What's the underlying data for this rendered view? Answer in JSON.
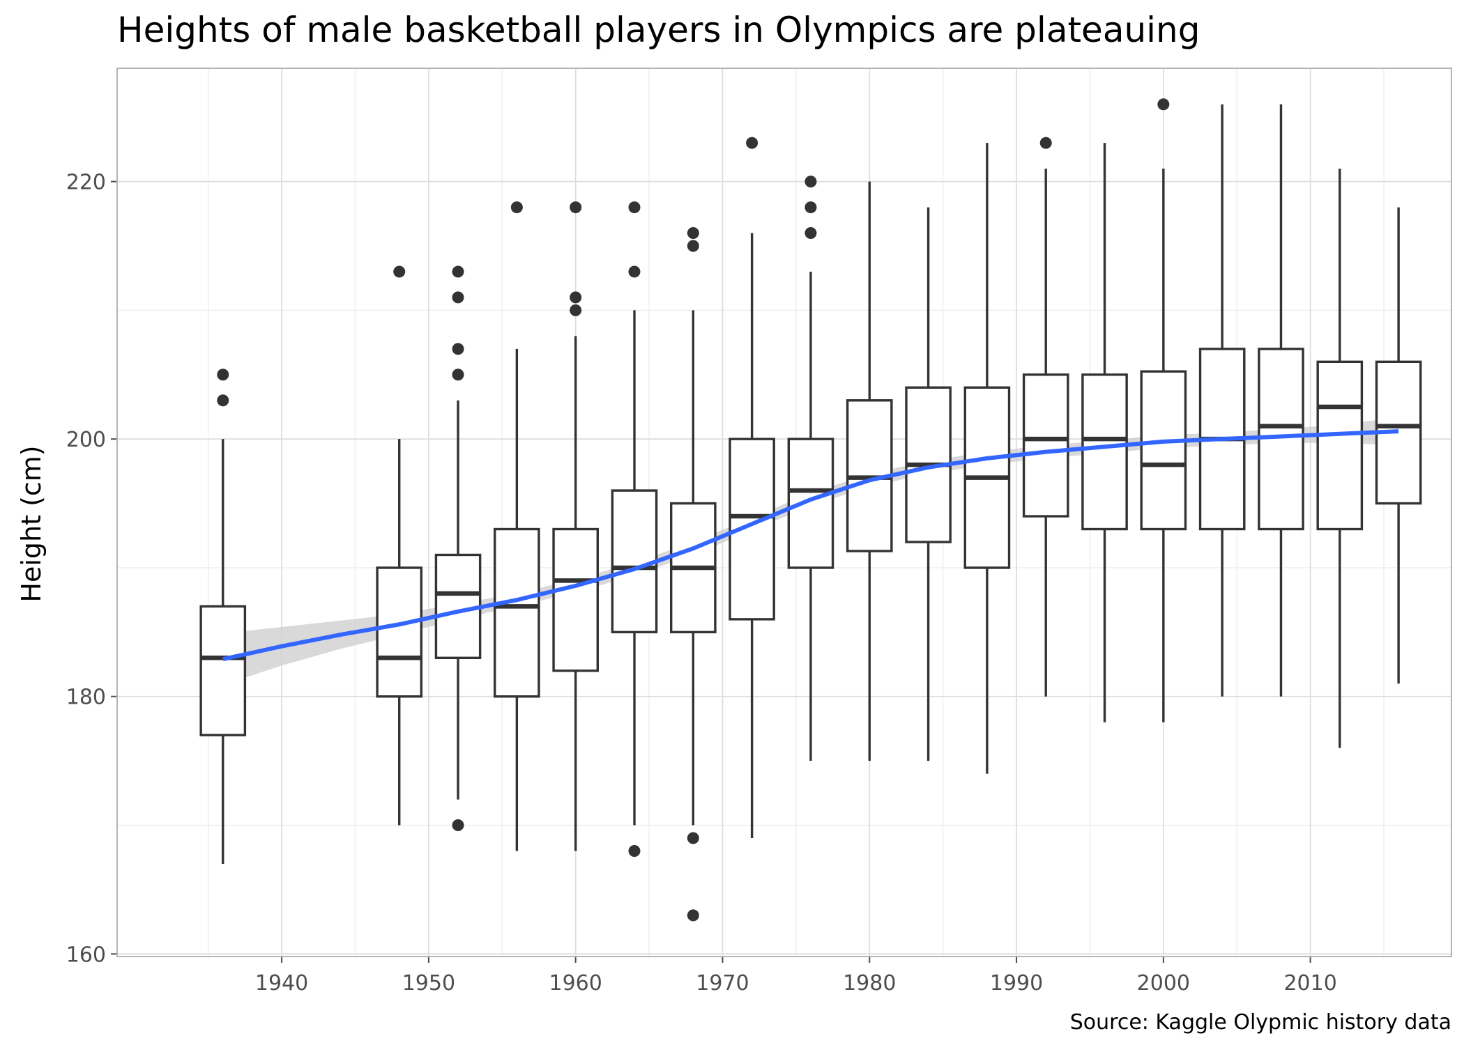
{
  "chart_data": {
    "type": "box",
    "title": "Heights of male basketball players in Olympics are plateauing",
    "subtitle": "",
    "xlabel": "",
    "ylabel": "Height (cm)",
    "caption": "Source: Kaggle Olypmic history data",
    "xlim": [
      1928.8,
      2019.6
    ],
    "ylim": [
      159.8,
      228.8
    ],
    "x_ticks": [
      1940,
      1950,
      1960,
      1970,
      1980,
      1990,
      2000,
      2010
    ],
    "y_ticks": [
      160,
      180,
      200,
      220
    ],
    "grid": true,
    "legend": "none",
    "boxes": [
      {
        "year": 1936,
        "q1": 177,
        "median": 183,
        "q3": 187,
        "whisker_low": 167,
        "whisker_high": 200,
        "outliers": [
          203,
          205
        ]
      },
      {
        "year": 1948,
        "q1": 180,
        "median": 183,
        "q3": 190,
        "whisker_low": 170,
        "whisker_high": 200,
        "outliers": [
          213
        ]
      },
      {
        "year": 1952,
        "q1": 183,
        "median": 188,
        "q3": 191,
        "whisker_low": 172,
        "whisker_high": 203,
        "outliers": [
          170,
          205,
          207,
          211,
          213
        ]
      },
      {
        "year": 1956,
        "q1": 180,
        "median": 187,
        "q3": 193,
        "whisker_low": 168,
        "whisker_high": 207,
        "outliers": [
          218
        ]
      },
      {
        "year": 1960,
        "q1": 182,
        "median": 189,
        "q3": 193,
        "whisker_low": 168,
        "whisker_high": 208,
        "outliers": [
          210,
          211,
          218
        ]
      },
      {
        "year": 1964,
        "q1": 185,
        "median": 190,
        "q3": 196,
        "whisker_low": 170,
        "whisker_high": 210,
        "outliers": [
          168,
          213,
          218
        ]
      },
      {
        "year": 1968,
        "q1": 185,
        "median": 190,
        "q3": 195,
        "whisker_low": 170,
        "whisker_high": 210,
        "outliers": [
          163,
          169,
          215,
          216
        ]
      },
      {
        "year": 1972,
        "q1": 186,
        "median": 194,
        "q3": 200,
        "whisker_low": 169,
        "whisker_high": 216,
        "outliers": [
          223
        ]
      },
      {
        "year": 1976,
        "q1": 190,
        "median": 196,
        "q3": 200,
        "whisker_low": 175,
        "whisker_high": 213,
        "outliers": [
          216,
          218,
          220
        ]
      },
      {
        "year": 1980,
        "q1": 191.3,
        "median": 197,
        "q3": 203,
        "whisker_low": 175,
        "whisker_high": 220,
        "outliers": []
      },
      {
        "year": 1984,
        "q1": 192,
        "median": 198,
        "q3": 204,
        "whisker_low": 175,
        "whisker_high": 218,
        "outliers": []
      },
      {
        "year": 1988,
        "q1": 190,
        "median": 197,
        "q3": 204,
        "whisker_low": 174,
        "whisker_high": 223,
        "outliers": []
      },
      {
        "year": 1992,
        "q1": 194,
        "median": 200,
        "q3": 205,
        "whisker_low": 180,
        "whisker_high": 221,
        "outliers": [
          223
        ]
      },
      {
        "year": 1996,
        "q1": 193,
        "median": 200,
        "q3": 205,
        "whisker_low": 178,
        "whisker_high": 223,
        "outliers": []
      },
      {
        "year": 2000,
        "q1": 193,
        "median": 198,
        "q3": 205.25,
        "whisker_low": 178,
        "whisker_high": 221,
        "outliers": [
          226
        ]
      },
      {
        "year": 2004,
        "q1": 193,
        "median": 200,
        "q3": 207,
        "whisker_low": 180,
        "whisker_high": 226,
        "outliers": []
      },
      {
        "year": 2008,
        "q1": 193,
        "median": 201,
        "q3": 207,
        "whisker_low": 180,
        "whisker_high": 226,
        "outliers": []
      },
      {
        "year": 2012,
        "q1": 193,
        "median": 202.5,
        "q3": 206,
        "whisker_low": 176,
        "whisker_high": 221,
        "outliers": []
      },
      {
        "year": 2016,
        "q1": 195,
        "median": 201,
        "q3": 206,
        "whisker_low": 181,
        "whisker_high": 218,
        "outliers": []
      }
    ],
    "smooth": {
      "method": "loess",
      "color": "#3366ff",
      "band_color": "#cccccc",
      "points": [
        {
          "x": 1936,
          "y": 182.9,
          "lo": 180.9,
          "hi": 184.9
        },
        {
          "x": 1940,
          "y": 183.9,
          "lo": 182.4,
          "hi": 185.4
        },
        {
          "x": 1944,
          "y": 184.8,
          "lo": 183.7,
          "hi": 185.9
        },
        {
          "x": 1948,
          "y": 185.6,
          "lo": 184.8,
          "hi": 186.4
        },
        {
          "x": 1952,
          "y": 186.6,
          "lo": 186.0,
          "hi": 187.2
        },
        {
          "x": 1956,
          "y": 187.5,
          "lo": 187.0,
          "hi": 188.0
        },
        {
          "x": 1960,
          "y": 188.6,
          "lo": 188.1,
          "hi": 189.1
        },
        {
          "x": 1964,
          "y": 189.9,
          "lo": 189.4,
          "hi": 190.4
        },
        {
          "x": 1968,
          "y": 191.5,
          "lo": 191.0,
          "hi": 192.0
        },
        {
          "x": 1972,
          "y": 193.4,
          "lo": 192.9,
          "hi": 193.9
        },
        {
          "x": 1976,
          "y": 195.3,
          "lo": 194.8,
          "hi": 195.8
        },
        {
          "x": 1980,
          "y": 196.8,
          "lo": 196.3,
          "hi": 197.3
        },
        {
          "x": 1984,
          "y": 197.8,
          "lo": 197.3,
          "hi": 198.3
        },
        {
          "x": 1988,
          "y": 198.5,
          "lo": 198.0,
          "hi": 199.0
        },
        {
          "x": 1992,
          "y": 199.0,
          "lo": 198.5,
          "hi": 199.5
        },
        {
          "x": 1996,
          "y": 199.4,
          "lo": 198.9,
          "hi": 199.9
        },
        {
          "x": 2000,
          "y": 199.8,
          "lo": 199.3,
          "hi": 200.3
        },
        {
          "x": 2004,
          "y": 200.0,
          "lo": 199.5,
          "hi": 200.5
        },
        {
          "x": 2008,
          "y": 200.2,
          "lo": 199.7,
          "hi": 200.8
        },
        {
          "x": 2012,
          "y": 200.4,
          "lo": 199.7,
          "hi": 201.1
        },
        {
          "x": 2016,
          "y": 200.6,
          "lo": 199.5,
          "hi": 201.7
        }
      ]
    }
  }
}
